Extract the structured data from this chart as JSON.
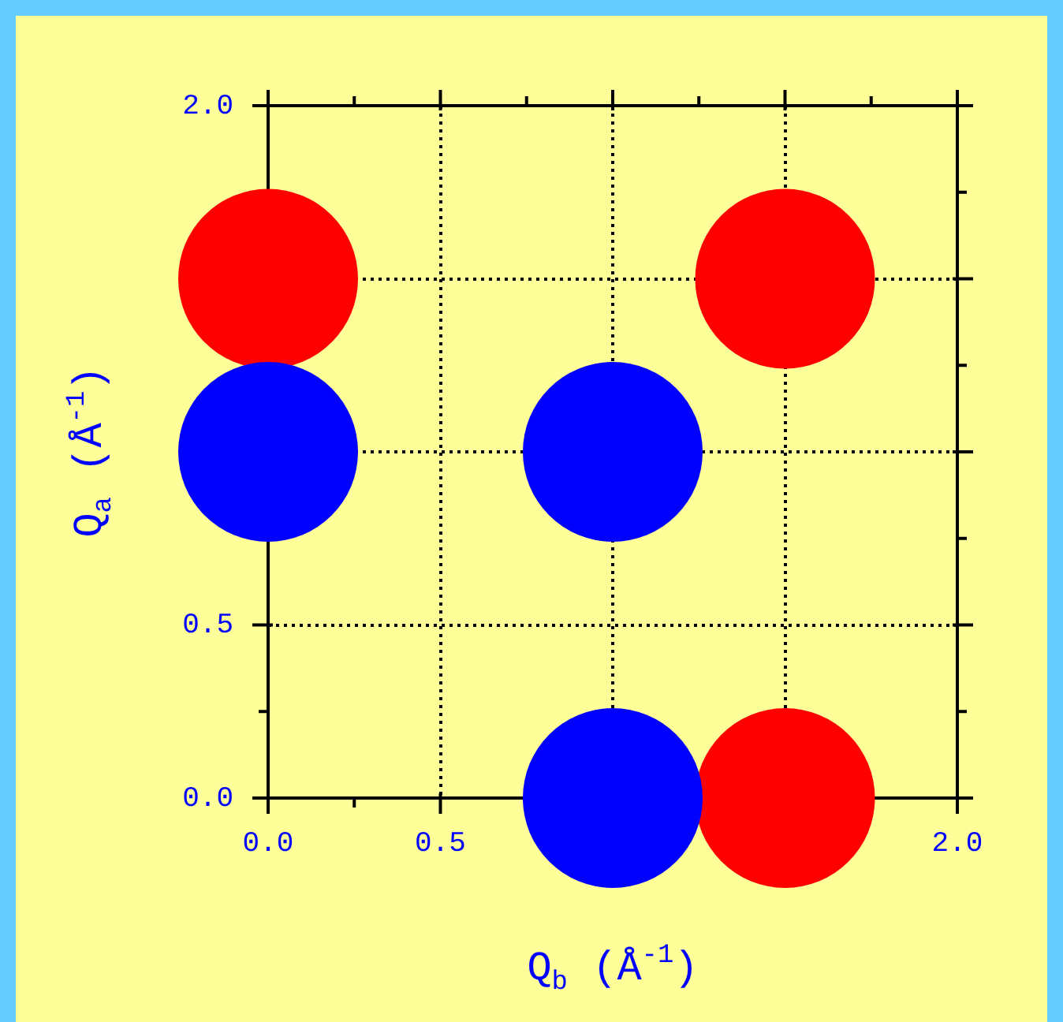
{
  "chart_data": {
    "type": "scatter",
    "xlabel": "Q$_{b}$ (Å$^{-1}$)",
    "ylabel": "Q$_{a}$ (Å$^{-1}$)",
    "series": [
      {
        "color": "#0000ff",
        "x": [
          0,
          1,
          1
        ],
        "values": [
          1,
          1,
          0
        ]
      },
      {
        "color": "#ff0000",
        "x": [
          0,
          1.5,
          1.5
        ],
        "values": [
          1.5,
          1.5,
          0
        ]
      }
    ],
    "xlim": [
      0,
      2
    ],
    "ylim": [
      0,
      2
    ],
    "xticks": [
      {
        "value": 0,
        "label": "0.0"
      },
      0.5,
      {
        "value": 1,
        "label": null
      },
      {
        "value": 1.5,
        "label": null
      },
      {
        "value": 2,
        "label": "2.0"
      }
    ],
    "yticks": [
      {
        "value": 0,
        "label": "0.0"
      },
      0.5,
      {
        "value": 1,
        "label": null
      },
      {
        "value": 1.5,
        "label": null
      },
      {
        "value": 2,
        "label": "2.0"
      }
    ],
    "grid": true,
    "marker": "circle"
  }
}
